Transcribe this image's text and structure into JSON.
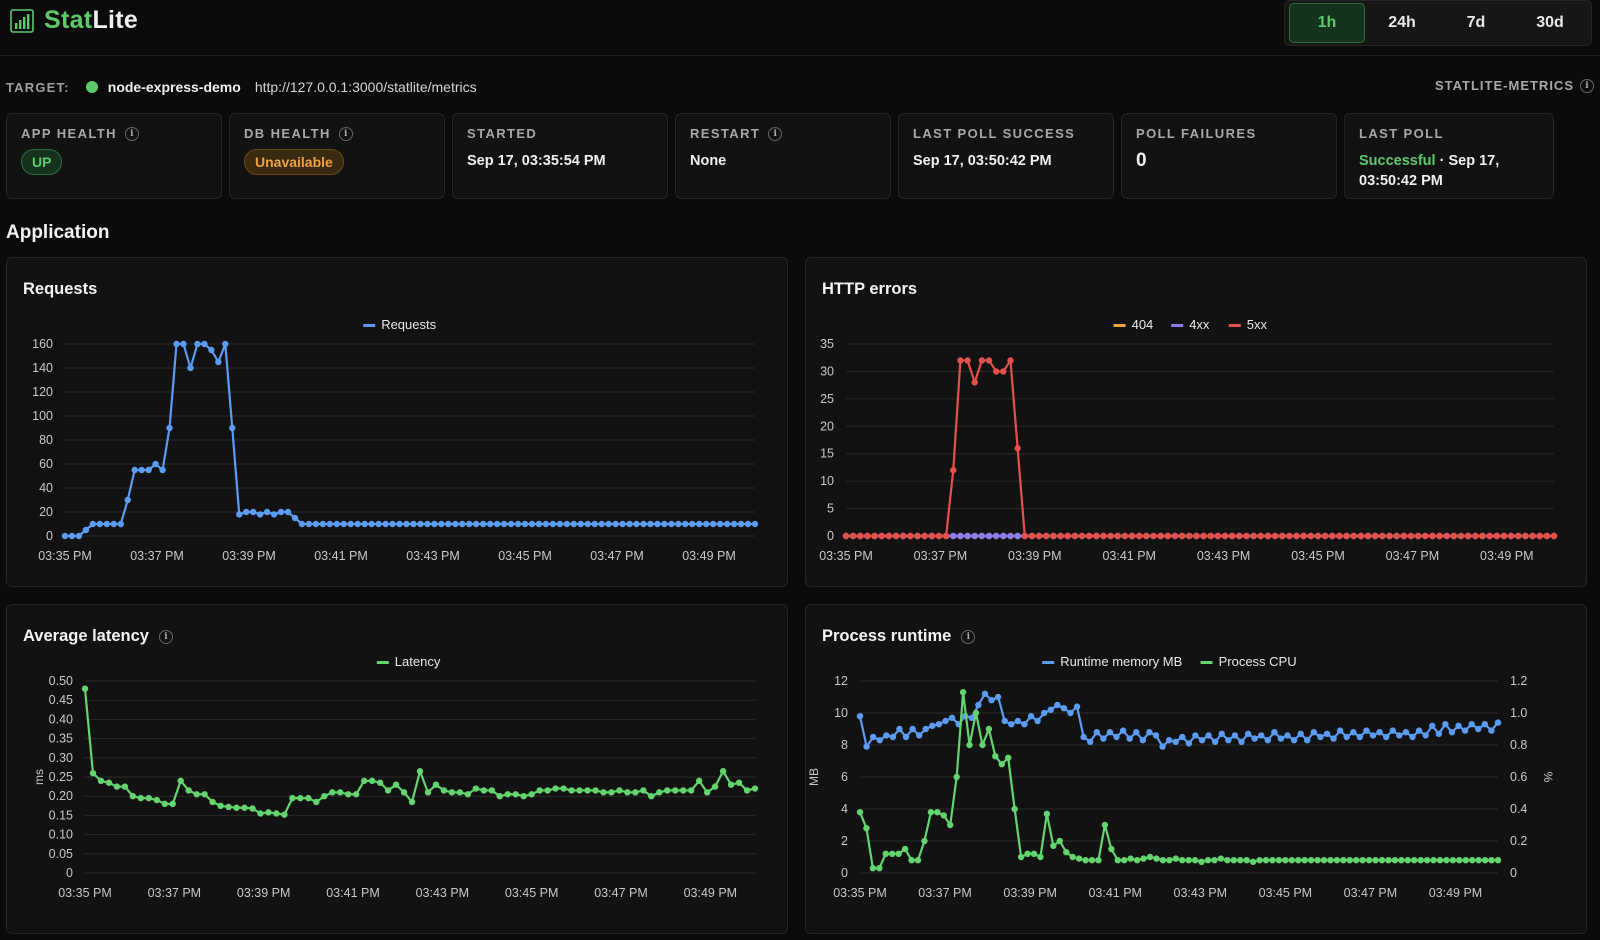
{
  "app": {
    "brand_part1": "Stat",
    "brand_part2": "Lite"
  },
  "range": {
    "options": [
      "1h",
      "24h",
      "7d",
      "30d"
    ],
    "active": "1h"
  },
  "target": {
    "label": "TARGET:",
    "name": "node-express-demo",
    "url": "http://127.0.0.1:3000/statlite/metrics",
    "status_color": "#5ec96b",
    "metrics_label": "STATLITE-METRICS"
  },
  "cards": {
    "app_health": {
      "title": "APP HEALTH",
      "value": "UP"
    },
    "db_health": {
      "title": "DB HEALTH",
      "value": "Unavailable"
    },
    "started": {
      "title": "STARTED",
      "value": "Sep 17, 03:35:54 PM"
    },
    "restart": {
      "title": "RESTART",
      "value": "None"
    },
    "last_poll_success": {
      "title": "LAST POLL SUCCESS",
      "value": "Sep 17, 03:50:42 PM"
    },
    "poll_failures": {
      "title": "POLL FAILURES",
      "value": "0"
    },
    "last_poll": {
      "title": "LAST POLL",
      "status": "Successful",
      "sep": " · ",
      "value": "Sep 17, 03:50:42 PM"
    }
  },
  "section": {
    "title": "Application"
  },
  "colors": {
    "blue": "#5b9cf2",
    "green": "#63d46e",
    "red": "#e2514b",
    "orange": "#f2a33a",
    "purple": "#8a7cf0",
    "grid": "#2a2a2a",
    "tick": "#c8c8c8"
  },
  "time_labels": [
    "03:35 PM",
    "03:37 PM",
    "03:39 PM",
    "03:41 PM",
    "03:43 PM",
    "03:45 PM",
    "03:47 PM",
    "03:49 PM"
  ],
  "chart_data": [
    {
      "id": "requests",
      "type": "line",
      "title": "Requests",
      "x_range": [
        "03:35 PM",
        "03:50 PM"
      ],
      "ylim": [
        0,
        160
      ],
      "yticks": [
        0,
        20,
        40,
        60,
        80,
        100,
        120,
        140,
        160
      ],
      "legend_position": "top-center",
      "series": [
        {
          "name": "Requests",
          "color": "#5b9cf2",
          "values": [
            0,
            0,
            0,
            5,
            10,
            10,
            10,
            10,
            10,
            30,
            55,
            55,
            55,
            60,
            55,
            90,
            160,
            160,
            140,
            160,
            160,
            155,
            145,
            160,
            90,
            18,
            20,
            20,
            18,
            20,
            18,
            20,
            20,
            15,
            10,
            10,
            10,
            10,
            10,
            10,
            10,
            10,
            10,
            10,
            10,
            10,
            10,
            10,
            10,
            10,
            10,
            10,
            10,
            10,
            10,
            10,
            10,
            10,
            10,
            10,
            10,
            10,
            10,
            10,
            10,
            10,
            10,
            10,
            10,
            10,
            10,
            10,
            10,
            10,
            10,
            10,
            10,
            10,
            10,
            10,
            10,
            10,
            10,
            10,
            10,
            10,
            10,
            10,
            10,
            10,
            10,
            10,
            10,
            10,
            10,
            10,
            10,
            10,
            10,
            10
          ]
        }
      ]
    },
    {
      "id": "http_errors",
      "type": "line",
      "title": "HTTP errors",
      "x_range": [
        "03:35 PM",
        "03:50 PM"
      ],
      "ylim": [
        0,
        35
      ],
      "yticks": [
        0,
        5,
        10,
        15,
        20,
        25,
        30,
        35
      ],
      "legend_position": "top-center",
      "series": [
        {
          "name": "404",
          "color": "#f2a33a",
          "values": [
            0,
            0,
            0,
            0,
            0,
            0,
            0,
            0,
            0,
            0,
            0,
            0,
            0,
            0,
            0,
            0,
            0,
            0,
            0,
            0,
            0,
            0,
            0,
            0,
            0,
            0,
            0,
            0,
            0,
            0,
            0,
            0,
            0,
            0,
            0,
            0,
            0,
            0,
            0,
            0,
            0,
            0,
            0,
            0,
            0,
            0,
            0,
            0,
            0,
            0,
            0,
            0,
            0,
            0,
            0,
            0,
            0,
            0,
            0,
            0,
            0,
            0,
            0,
            0,
            0,
            0,
            0,
            0,
            0,
            0,
            0,
            0,
            0,
            0,
            0,
            0,
            0,
            0,
            0,
            0,
            0,
            0,
            0,
            0,
            0,
            0,
            0,
            0,
            0,
            0,
            0,
            0,
            0,
            0,
            0,
            0,
            0,
            0,
            0,
            0
          ]
        },
        {
          "name": "4xx",
          "color": "#8a7cf0",
          "values": [
            0,
            0,
            0,
            0,
            0,
            0,
            0,
            0,
            0,
            0,
            0,
            0,
            0,
            0,
            0,
            0,
            0,
            0,
            0,
            0,
            0,
            0,
            0,
            0,
            0,
            0,
            0,
            0,
            0,
            0,
            0,
            0,
            0,
            0,
            0,
            0,
            0,
            0,
            0,
            0,
            0,
            0,
            0,
            0,
            0,
            0,
            0,
            0,
            0,
            0,
            0,
            0,
            0,
            0,
            0,
            0,
            0,
            0,
            0,
            0,
            0,
            0,
            0,
            0,
            0,
            0,
            0,
            0,
            0,
            0,
            0,
            0,
            0,
            0,
            0,
            0,
            0,
            0,
            0,
            0,
            0,
            0,
            0,
            0,
            0,
            0,
            0,
            0,
            0,
            0,
            0,
            0,
            0,
            0,
            0,
            0,
            0,
            0,
            0,
            0
          ]
        },
        {
          "name": "5xx",
          "color": "#e2514b",
          "values": [
            0,
            0,
            0,
            0,
            0,
            0,
            0,
            0,
            0,
            0,
            0,
            0,
            0,
            0,
            0,
            12,
            32,
            32,
            28,
            32,
            32,
            30,
            30,
            32,
            16,
            0,
            0,
            0,
            0,
            0,
            0,
            0,
            0,
            0,
            0,
            0,
            0,
            0,
            0,
            0,
            0,
            0,
            0,
            0,
            0,
            0,
            0,
            0,
            0,
            0,
            0,
            0,
            0,
            0,
            0,
            0,
            0,
            0,
            0,
            0,
            0,
            0,
            0,
            0,
            0,
            0,
            0,
            0,
            0,
            0,
            0,
            0,
            0,
            0,
            0,
            0,
            0,
            0,
            0,
            0,
            0,
            0,
            0,
            0,
            0,
            0,
            0,
            0,
            0,
            0,
            0,
            0,
            0,
            0,
            0,
            0,
            0,
            0,
            0,
            0
          ]
        }
      ]
    },
    {
      "id": "latency",
      "type": "line",
      "title": "Average latency",
      "x_range": [
        "03:35 PM",
        "03:50 PM"
      ],
      "ylabel": "ms",
      "ylim": [
        0,
        0.5
      ],
      "yticks": [
        "0",
        "0.05",
        "0.10",
        "0.15",
        "0.20",
        "0.25",
        "0.30",
        "0.35",
        "0.40",
        "0.45",
        "0.50"
      ],
      "legend_position": "top-center",
      "series": [
        {
          "name": "Latency",
          "color": "#63d46e",
          "values": [
            0.48,
            0.26,
            0.24,
            0.235,
            0.225,
            0.225,
            0.2,
            0.195,
            0.195,
            0.19,
            0.18,
            0.18,
            0.24,
            0.215,
            0.205,
            0.205,
            0.185,
            0.175,
            0.172,
            0.17,
            0.17,
            0.168,
            0.155,
            0.158,
            0.155,
            0.152,
            0.195,
            0.195,
            0.195,
            0.185,
            0.2,
            0.21,
            0.21,
            0.205,
            0.205,
            0.24,
            0.24,
            0.235,
            0.215,
            0.23,
            0.21,
            0.185,
            0.265,
            0.21,
            0.23,
            0.215,
            0.21,
            0.21,
            0.205,
            0.22,
            0.215,
            0.215,
            0.2,
            0.205,
            0.205,
            0.2,
            0.205,
            0.215,
            0.215,
            0.22,
            0.22,
            0.215,
            0.215,
            0.215,
            0.215,
            0.21,
            0.21,
            0.215,
            0.21,
            0.21,
            0.215,
            0.2,
            0.21,
            0.215,
            0.215,
            0.215,
            0.215,
            0.24,
            0.21,
            0.225,
            0.265,
            0.23,
            0.235,
            0.215,
            0.22
          ]
        }
      ]
    },
    {
      "id": "process_runtime",
      "type": "line",
      "title": "Process runtime",
      "x_range": [
        "03:35 PM",
        "03:50 PM"
      ],
      "ylabel": "MB",
      "ylabel_right": "%",
      "ylim": [
        0,
        12
      ],
      "ylim_right": [
        0,
        1.2
      ],
      "yticks": [
        "0",
        "2",
        "4",
        "6",
        "8",
        "10",
        "12"
      ],
      "yticks_right": [
        "0",
        "0.2",
        "0.4",
        "0.6",
        "0.8",
        "1.0",
        "1.2"
      ],
      "legend_position": "top-center",
      "series": [
        {
          "name": "Runtime memory MB",
          "color": "#5b9cf2",
          "axis": "left",
          "values": [
            9.8,
            7.9,
            8.5,
            8.3,
            8.6,
            8.5,
            9,
            8.5,
            9,
            8.6,
            9,
            9.2,
            9.3,
            9.5,
            9.7,
            9.3,
            9.8,
            9.7,
            10.5,
            11.2,
            10.8,
            11,
            9.5,
            9.3,
            9.5,
            9.3,
            9.8,
            9.5,
            10,
            10.2,
            10.5,
            10.3,
            10,
            10.4,
            8.5,
            8.2,
            8.8,
            8.4,
            8.8,
            8.5,
            8.9,
            8.4,
            8.8,
            8.3,
            8.8,
            8.6,
            7.9,
            8.3,
            8.2,
            8.5,
            8.1,
            8.6,
            8.3,
            8.6,
            8.2,
            8.7,
            8.3,
            8.6,
            8.2,
            8.7,
            8.4,
            8.6,
            8.3,
            8.8,
            8.4,
            8.6,
            8.3,
            8.7,
            8.3,
            8.8,
            8.5,
            8.7,
            8.4,
            8.9,
            8.5,
            8.8,
            8.5,
            8.9,
            8.6,
            8.8,
            8.5,
            8.9,
            8.6,
            8.8,
            8.5,
            8.9,
            8.6,
            9.2,
            8.7,
            9.3,
            8.8,
            9.2,
            8.9,
            9.3,
            9.0,
            9.3,
            8.9,
            9.4
          ]
        },
        {
          "name": "Process CPU",
          "color": "#63d46e",
          "axis": "right",
          "values": [
            0.38,
            0.28,
            0.03,
            0.03,
            0.12,
            0.12,
            0.12,
            0.15,
            0.08,
            0.08,
            0.2,
            0.38,
            0.38,
            0.36,
            0.3,
            0.6,
            1.13,
            0.8,
            1.0,
            0.8,
            0.9,
            0.73,
            0.68,
            0.72,
            0.4,
            0.1,
            0.12,
            0.12,
            0.1,
            0.37,
            0.17,
            0.2,
            0.13,
            0.1,
            0.09,
            0.08,
            0.08,
            0.08,
            0.3,
            0.15,
            0.08,
            0.08,
            0.09,
            0.08,
            0.09,
            0.1,
            0.09,
            0.08,
            0.08,
            0.09,
            0.08,
            0.08,
            0.08,
            0.07,
            0.08,
            0.08,
            0.09,
            0.08,
            0.08,
            0.08,
            0.08,
            0.07,
            0.08,
            0.08,
            0.08,
            0.08,
            0.08,
            0.08,
            0.08,
            0.08,
            0.08,
            0.08,
            0.08,
            0.08,
            0.08,
            0.08,
            0.08,
            0.08,
            0.08,
            0.08,
            0.08,
            0.08,
            0.08,
            0.08,
            0.08,
            0.08,
            0.08,
            0.08,
            0.08,
            0.08,
            0.08,
            0.08,
            0.08,
            0.08,
            0.08,
            0.08,
            0.08,
            0.08,
            0.08,
            0.08
          ]
        }
      ]
    }
  ]
}
